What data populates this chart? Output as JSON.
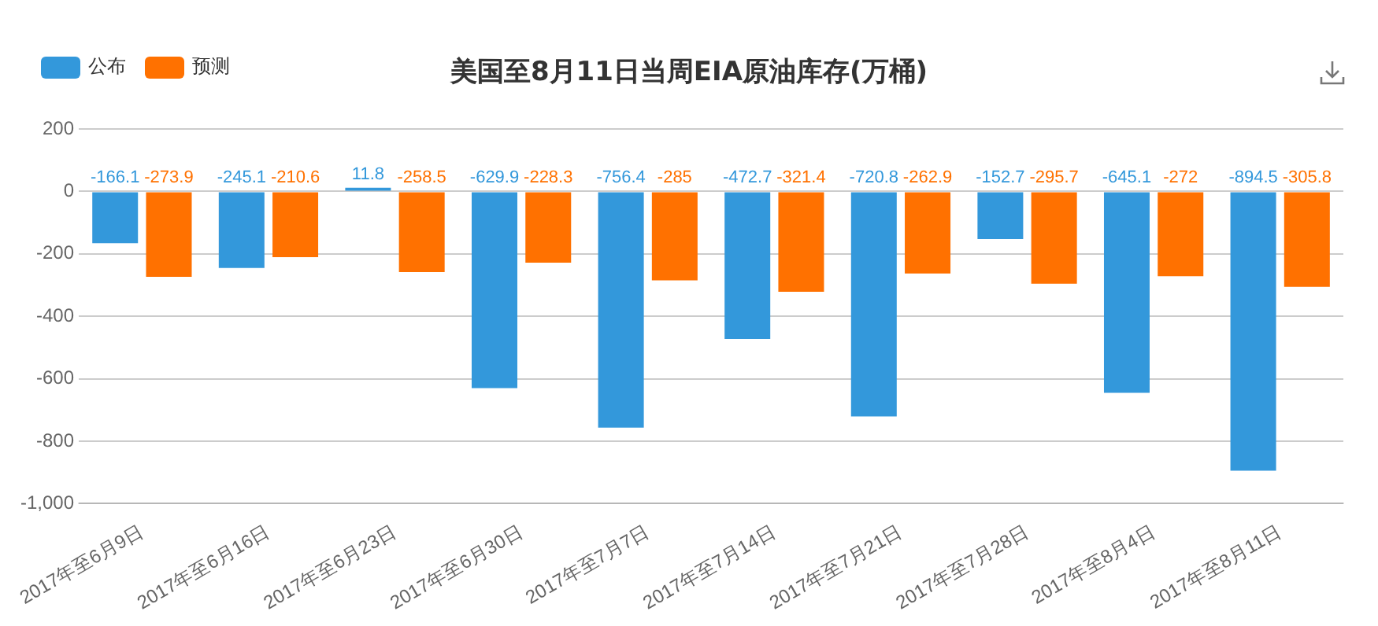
{
  "chart_data": {
    "type": "bar",
    "title": "美国至8月11日当周EIA原油库存(万桶)",
    "categories": [
      "2017年至6月9日",
      "2017年至6月16日",
      "2017年至6月23日",
      "2017年至6月30日",
      "2017年至7月7日",
      "2017年至7月14日",
      "2017年至7月21日",
      "2017年至7月28日",
      "2017年至8月4日",
      "2017年至8月11日"
    ],
    "series": [
      {
        "name": "公布",
        "color": "#3398db",
        "values": [
          -166.1,
          -245.1,
          11.8,
          -629.9,
          -756.4,
          -472.7,
          -720.8,
          -152.7,
          -645.1,
          -894.5
        ]
      },
      {
        "name": "预测",
        "color": "#ff7100",
        "values": [
          -273.9,
          -210.6,
          -258.5,
          -228.3,
          -285,
          -321.4,
          -262.9,
          -295.7,
          -272,
          -305.8
        ]
      }
    ],
    "ylim": [
      -1000,
      200
    ],
    "yticks": [
      {
        "value": -1000,
        "label": "-1,000"
      },
      -800,
      -600,
      -400,
      -200,
      0,
      200
    ],
    "grid": "y",
    "legend": "top left",
    "data_labels": true
  }
}
